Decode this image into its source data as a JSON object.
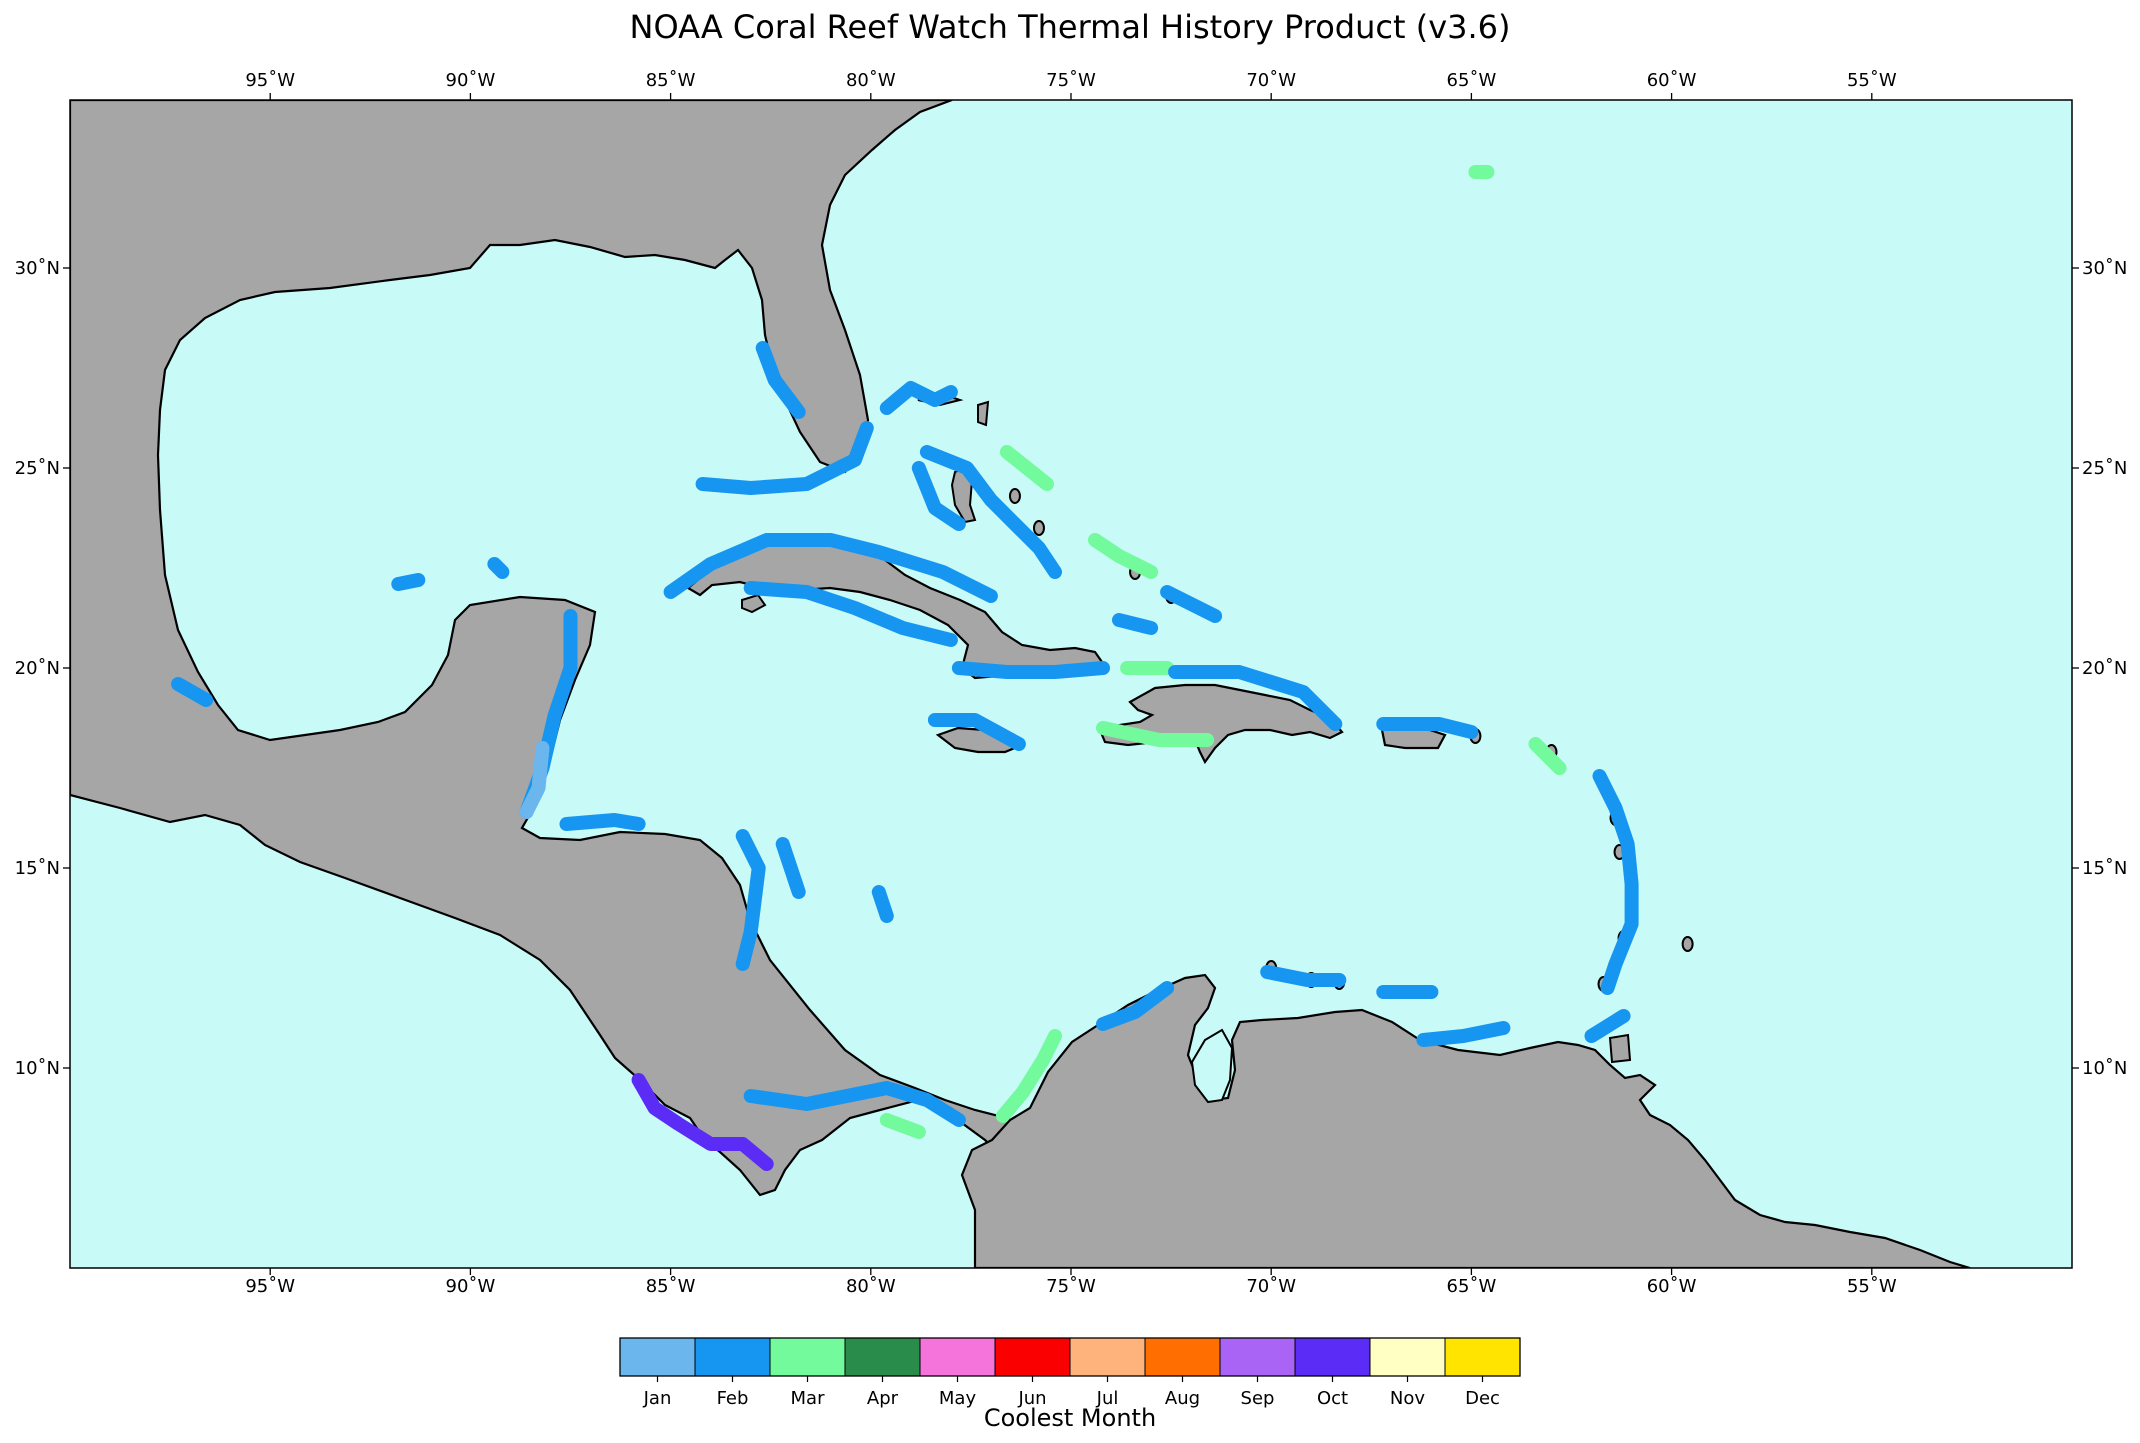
{
  "title": "NOAA Coral Reef Watch Thermal History Product (v3.6)",
  "map": {
    "extent": {
      "lon_min": -100,
      "lon_max": -50,
      "lat_min": 5,
      "lat_max": 34.2
    },
    "lon_ticks": [
      {
        "lon": -95,
        "label": "95˚W"
      },
      {
        "lon": -90,
        "label": "90˚W"
      },
      {
        "lon": -85,
        "label": "85˚W"
      },
      {
        "lon": -80,
        "label": "80˚W"
      },
      {
        "lon": -75,
        "label": "75˚W"
      },
      {
        "lon": -70,
        "label": "70˚W"
      },
      {
        "lon": -65,
        "label": "65˚W"
      },
      {
        "lon": -60,
        "label": "60˚W"
      },
      {
        "lon": -55,
        "label": "55˚W"
      }
    ],
    "lat_ticks": [
      {
        "lat": 30,
        "label": "30˚N"
      },
      {
        "lat": 25,
        "label": "25˚N"
      },
      {
        "lat": 20,
        "label": "20˚N"
      },
      {
        "lat": 15,
        "label": "15˚N"
      },
      {
        "lat": 10,
        "label": "10˚N"
      }
    ],
    "colors": {
      "ocean": "#c8faf8",
      "land": "#a6a6a6",
      "coast": "#000000"
    }
  },
  "colorbar": {
    "title": "Coolest Month",
    "months": [
      {
        "label": "Jan",
        "color": "#6cb6ee"
      },
      {
        "label": "Feb",
        "color": "#1696f0"
      },
      {
        "label": "Mar",
        "color": "#72fa9c"
      },
      {
        "label": "Apr",
        "color": "#2a8c4a"
      },
      {
        "label": "May",
        "color": "#f574dc"
      },
      {
        "label": "Jun",
        "color": "#fa0000"
      },
      {
        "label": "Jul",
        "color": "#ffb37c"
      },
      {
        "label": "Aug",
        "color": "#ff6e00"
      },
      {
        "label": "Sep",
        "color": "#aa64f5"
      },
      {
        "label": "Oct",
        "color": "#5a2cf5"
      },
      {
        "label": "Nov",
        "color": "#ffffc4"
      },
      {
        "label": "Dec",
        "color": "#ffe400"
      }
    ]
  },
  "reef_regions": [
    {
      "month": "Feb",
      "points": [
        [
          -79.6,
          26.5
        ],
        [
          -79.0,
          27.0
        ],
        [
          -78.4,
          26.7
        ],
        [
          -78.0,
          26.9
        ]
      ]
    },
    {
      "month": "Feb",
      "points": [
        [
          -78.6,
          25.4
        ],
        [
          -77.6,
          25.0
        ],
        [
          -77.0,
          24.2
        ],
        [
          -76.4,
          23.6
        ],
        [
          -75.8,
          23.0
        ],
        [
          -75.4,
          22.4
        ]
      ]
    },
    {
      "month": "Feb",
      "points": [
        [
          -78.8,
          25.0
        ],
        [
          -78.4,
          24.0
        ],
        [
          -77.8,
          23.6
        ]
      ]
    },
    {
      "month": "Mar",
      "points": [
        [
          -76.6,
          25.4
        ],
        [
          -75.6,
          24.6
        ]
      ]
    },
    {
      "month": "Mar",
      "points": [
        [
          -74.4,
          23.2
        ],
        [
          -73.8,
          22.8
        ],
        [
          -73.0,
          22.4
        ]
      ]
    },
    {
      "month": "Feb",
      "points": [
        [
          -72.6,
          21.9
        ],
        [
          -72.0,
          21.6
        ],
        [
          -71.4,
          21.3
        ]
      ]
    },
    {
      "month": "Feb",
      "points": [
        [
          -73.8,
          21.2
        ],
        [
          -73.0,
          21.0
        ]
      ]
    },
    {
      "month": "Feb",
      "points": [
        [
          -84.2,
          24.6
        ],
        [
          -83.0,
          24.5
        ],
        [
          -81.6,
          24.6
        ],
        [
          -80.4,
          25.2
        ],
        [
          -80.1,
          26.0
        ]
      ]
    },
    {
      "month": "Feb",
      "points": [
        [
          -81.8,
          26.4
        ],
        [
          -82.4,
          27.2
        ],
        [
          -82.7,
          28.0
        ]
      ]
    },
    {
      "month": "Feb",
      "points": [
        [
          -85.0,
          21.9
        ],
        [
          -84.0,
          22.6
        ],
        [
          -82.6,
          23.2
        ],
        [
          -81.0,
          23.2
        ],
        [
          -79.8,
          22.9
        ],
        [
          -78.2,
          22.4
        ],
        [
          -77.0,
          21.8
        ]
      ]
    },
    {
      "month": "Feb",
      "points": [
        [
          -83.0,
          22.0
        ],
        [
          -81.6,
          21.9
        ],
        [
          -80.4,
          21.5
        ],
        [
          -79.2,
          21.0
        ],
        [
          -78.0,
          20.7
        ]
      ]
    },
    {
      "month": "Feb",
      "points": [
        [
          -77.8,
          20.0
        ],
        [
          -76.6,
          19.9
        ],
        [
          -75.4,
          19.9
        ],
        [
          -74.2,
          20.0
        ]
      ]
    },
    {
      "month": "Mar",
      "points": [
        [
          -73.6,
          20.0
        ],
        [
          -72.6,
          20.0
        ]
      ]
    },
    {
      "month": "Feb",
      "points": [
        [
          -72.4,
          19.9
        ],
        [
          -70.8,
          19.9
        ],
        [
          -69.2,
          19.4
        ],
        [
          -68.4,
          18.6
        ]
      ]
    },
    {
      "month": "Mar",
      "points": [
        [
          -74.2,
          18.5
        ],
        [
          -72.8,
          18.2
        ],
        [
          -71.6,
          18.2
        ]
      ]
    },
    {
      "month": "Feb",
      "points": [
        [
          -78.4,
          18.7
        ],
        [
          -77.4,
          18.7
        ],
        [
          -76.3,
          18.1
        ]
      ]
    },
    {
      "month": "Feb",
      "points": [
        [
          -67.2,
          18.6
        ],
        [
          -65.8,
          18.6
        ],
        [
          -65.0,
          18.4
        ]
      ]
    },
    {
      "month": "Mar",
      "points": [
        [
          -63.4,
          18.1
        ],
        [
          -62.8,
          17.5
        ]
      ]
    },
    {
      "month": "Feb",
      "points": [
        [
          -61.8,
          17.3
        ],
        [
          -61.4,
          16.5
        ],
        [
          -61.1,
          15.6
        ],
        [
          -61.0,
          14.6
        ],
        [
          -61.0,
          13.6
        ],
        [
          -61.4,
          12.6
        ],
        [
          -61.6,
          12.0
        ]
      ]
    },
    {
      "month": "Feb",
      "points": [
        [
          -87.5,
          21.3
        ],
        [
          -87.5,
          20.0
        ],
        [
          -87.9,
          18.8
        ],
        [
          -88.2,
          17.5
        ],
        [
          -88.6,
          16.4
        ]
      ]
    },
    {
      "month": "Jan",
      "points": [
        [
          -88.2,
          18.0
        ],
        [
          -88.3,
          17.0
        ],
        [
          -88.6,
          16.4
        ]
      ]
    },
    {
      "month": "Feb",
      "points": [
        [
          -87.6,
          16.1
        ],
        [
          -86.4,
          16.2
        ],
        [
          -85.8,
          16.1
        ]
      ]
    },
    {
      "month": "Feb",
      "points": [
        [
          -83.2,
          15.8
        ],
        [
          -82.8,
          15.0
        ],
        [
          -82.9,
          14.2
        ],
        [
          -83.0,
          13.4
        ],
        [
          -83.2,
          12.6
        ]
      ]
    },
    {
      "month": "Feb",
      "points": [
        [
          -82.2,
          15.6
        ],
        [
          -81.8,
          14.4
        ]
      ]
    },
    {
      "month": "Feb",
      "points": [
        [
          -79.8,
          14.4
        ],
        [
          -79.6,
          13.8
        ]
      ]
    },
    {
      "month": "Feb",
      "points": [
        [
          -83.0,
          9.3
        ],
        [
          -81.6,
          9.1
        ],
        [
          -80.6,
          9.3
        ],
        [
          -79.6,
          9.5
        ],
        [
          -78.6,
          9.2
        ],
        [
          -77.8,
          8.7
        ]
      ]
    },
    {
      "month": "Mar",
      "points": [
        [
          -76.7,
          8.8
        ],
        [
          -76.2,
          9.4
        ],
        [
          -75.7,
          10.2
        ],
        [
          -75.4,
          10.8
        ]
      ]
    },
    {
      "month": "Mar",
      "points": [
        [
          -79.6,
          8.7
        ],
        [
          -78.8,
          8.4
        ]
      ]
    },
    {
      "month": "Feb",
      "points": [
        [
          -74.2,
          11.1
        ],
        [
          -73.4,
          11.4
        ],
        [
          -72.6,
          12.0
        ]
      ]
    },
    {
      "month": "Feb",
      "points": [
        [
          -70.1,
          12.4
        ],
        [
          -69.1,
          12.2
        ],
        [
          -68.3,
          12.2
        ]
      ]
    },
    {
      "month": "Feb",
      "points": [
        [
          -67.2,
          11.9
        ],
        [
          -66.0,
          11.9
        ]
      ]
    },
    {
      "month": "Feb",
      "points": [
        [
          -66.2,
          10.7
        ],
        [
          -65.2,
          10.8
        ],
        [
          -64.2,
          11.0
        ]
      ]
    },
    {
      "month": "Feb",
      "points": [
        [
          -62.0,
          10.8
        ],
        [
          -61.2,
          11.3
        ]
      ]
    },
    {
      "month": "Oct",
      "points": [
        [
          -85.8,
          9.7
        ],
        [
          -85.4,
          9.0
        ],
        [
          -84.8,
          8.6
        ],
        [
          -84.0,
          8.1
        ],
        [
          -83.2,
          8.1
        ],
        [
          -82.6,
          7.6
        ]
      ]
    },
    {
      "month": "Mar",
      "points": [
        [
          -64.9,
          32.4
        ],
        [
          -64.6,
          32.4
        ]
      ]
    },
    {
      "month": "Feb",
      "points": [
        [
          -97.3,
          19.6
        ],
        [
          -96.6,
          19.2
        ]
      ]
    },
    {
      "month": "Feb",
      "points": [
        [
          -91.8,
          22.1
        ],
        [
          -91.3,
          22.2
        ]
      ]
    },
    {
      "month": "Feb",
      "points": [
        [
          -89.4,
          22.6
        ],
        [
          -89.2,
          22.4
        ]
      ]
    }
  ]
}
